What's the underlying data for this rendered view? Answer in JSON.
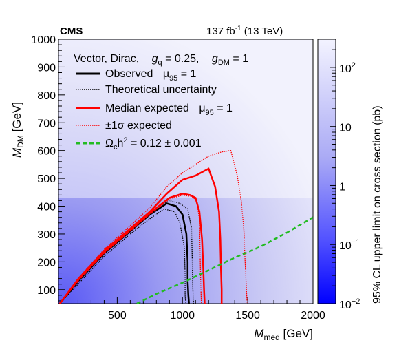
{
  "header": {
    "experiment": "CMS",
    "lumi_value": "137 fb",
    "lumi_exp": "-1",
    "energy": " (13 TeV)"
  },
  "legend": {
    "model": "Vector, Dirac,",
    "gq_sym": "g",
    "gq_sub": "q",
    "gq_val": " = 0.25,",
    "gdm_sym": "g",
    "gdm_sub": "DM",
    "gdm_val": " = 1",
    "entries": [
      {
        "label": "Observed",
        "mu": "μ",
        "mu_sub": "95",
        "mu_val": " = 1",
        "color": "#000000",
        "style": "solid"
      },
      {
        "label": "Theoretical uncertainty",
        "color": "#000000",
        "style": "dotted"
      },
      {
        "label": "Median expected",
        "mu": "μ",
        "mu_sub": "95",
        "mu_val": " = 1",
        "color": "#ff0000",
        "style": "solid"
      },
      {
        "label": "±1σ expected",
        "color": "#ff0000",
        "style": "dotted"
      },
      {
        "label": "Ω",
        "omega_sub": "c",
        "omega_rest": "h",
        "omega_sup": "2",
        "omega_val": " = 0.12   ± 0.001",
        "color": "#22bb22",
        "style": "dashed"
      }
    ]
  },
  "axes": {
    "x_label_main": "M",
    "x_label_sub": "med",
    "x_label_unit": " [GeV]",
    "y_label_main": "M",
    "y_label_sub": "DM",
    "y_label_unit": " [GeV]",
    "z_label": "95% CL upper limit on cross section (pb)",
    "x_ticks": [
      "500",
      "1000",
      "1500",
      "2000"
    ],
    "y_ticks": [
      "100",
      "200",
      "300",
      "400",
      "500",
      "600",
      "700",
      "800",
      "900",
      "1000"
    ],
    "z_ticks": [
      {
        "base": "10",
        "exp": "2"
      },
      {
        "base": "10",
        "exp": ""
      },
      {
        "base": "1",
        "exp": ""
      },
      {
        "base": "10",
        "exp": "−1"
      },
      {
        "base": "10",
        "exp": "−2"
      }
    ]
  },
  "chart_data": {
    "type": "heatmap",
    "xlim": [
      50,
      2000
    ],
    "ylim": [
      50,
      1000
    ],
    "zlim": [
      0.01,
      300
    ],
    "z_scale": "log",
    "series": [
      {
        "name": "Observed",
        "color": "#000000",
        "style": "solid",
        "x": [
          60,
          200,
          400,
          600,
          750,
          880,
          950,
          1000,
          1030,
          1040,
          1040,
          1045,
          1050
        ],
        "y": [
          50,
          130,
          230,
          310,
          370,
          410,
          400,
          370,
          300,
          200,
          130,
          80,
          50
        ]
      },
      {
        "name": "Theoretical uncertainty (upper)",
        "color": "#000000",
        "style": "dotted",
        "x": [
          60,
          200,
          400,
          600,
          750,
          860,
          940,
          980,
          1015,
          1020,
          1020,
          1025
        ],
        "y": [
          50,
          120,
          220,
          300,
          355,
          390,
          380,
          340,
          250,
          150,
          80,
          50
        ]
      },
      {
        "name": "Theoretical uncertainty (lower)",
        "color": "#000000",
        "style": "dotted",
        "x": [
          60,
          200,
          400,
          600,
          750,
          900,
          980,
          1040,
          1070,
          1075,
          1080,
          1085
        ],
        "y": [
          50,
          140,
          240,
          320,
          380,
          420,
          410,
          390,
          320,
          200,
          100,
          50
        ]
      },
      {
        "name": "Median expected",
        "color": "#ff0000",
        "style": "solid",
        "x": [
          60,
          200,
          400,
          600,
          750,
          900,
          1000,
          1060,
          1100,
          1130,
          1150,
          1160,
          1165,
          1170
        ],
        "y": [
          50,
          135,
          235,
          315,
          375,
          430,
          445,
          440,
          430,
          380,
          280,
          170,
          100,
          50
        ]
      },
      {
        "name": "±1σ expected (lower)",
        "color": "#ff0000",
        "style": "dotted",
        "x": [
          60,
          200,
          400,
          600,
          750,
          900,
          1000,
          1070,
          1110,
          1130,
          1135,
          1140,
          1145
        ],
        "y": [
          50,
          130,
          230,
          310,
          370,
          425,
          440,
          435,
          420,
          350,
          230,
          120,
          50
        ]
      },
      {
        "name": "±1σ expected (upper)",
        "color": "#ff0000",
        "style": "dotted",
        "x": [
          60,
          200,
          400,
          600,
          750,
          880,
          1000,
          1100,
          1200,
          1300,
          1370,
          1420,
          1450,
          1470,
          1480,
          1490,
          1495
        ],
        "y": [
          50,
          140,
          245,
          330,
          395,
          470,
          520,
          550,
          580,
          595,
          600,
          510,
          420,
          320,
          200,
          100,
          50
        ]
      },
      {
        "name": "Median expected (outer)",
        "color": "#ff0000",
        "style": "solid",
        "x": [
          60,
          200,
          400,
          600,
          750,
          880,
          1000,
          1100,
          1200,
          1250,
          1280,
          1290,
          1295,
          1300,
          1300
        ],
        "y": [
          50,
          138,
          240,
          320,
          380,
          445,
          495,
          510,
          535,
          470,
          380,
          280,
          180,
          100,
          50
        ]
      },
      {
        "name": "Ωch² = 0.12",
        "color": "#22bb22",
        "style": "dashed",
        "x": [
          650,
          800,
          1000,
          1200,
          1400,
          1600,
          1800,
          2000
        ],
        "y": [
          50,
          85,
          125,
          170,
          215,
          255,
          305,
          360
        ]
      }
    ]
  }
}
